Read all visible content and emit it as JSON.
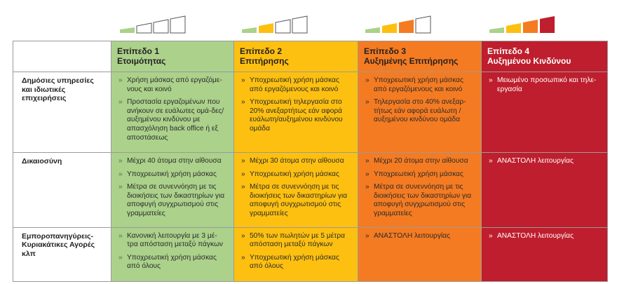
{
  "levels": [
    {
      "title1": "Επίπεδο 1",
      "title2": "Ετοιμότητας",
      "color": "#abd18b",
      "active_bars": 1
    },
    {
      "title1": "Επίπεδο 2",
      "title2": "Επιτήρησης",
      "color": "#fdc010",
      "active_bars": 2
    },
    {
      "title1": "Επίπεδο 3",
      "title2": "Αυξημένης Επιτήρησης",
      "color": "#f47b22",
      "active_bars": 3
    },
    {
      "title1": "Επίπεδο 4",
      "title2": "Αυξημένου Κινδύνου",
      "color": "#be1e2d",
      "active_bars": 4
    }
  ],
  "rows": [
    {
      "label": "Δημόσιες υπηρεσίες και ιδιωτικές επιχειρήσεις",
      "cells": [
        [
          "Χρήση μάσκας από εργαζόμε-νους και κοινό",
          "Προστασία εργαζομένων που ανήκουν σε ευάλωτες ομά-δες/αυξημένου κινδύνου με απασχόληση back office ή εξ αποστάσεως"
        ],
        [
          "Υποχρεωτική χρήση μάσκας από εργαζόμενους και κοινό",
          "Υποχρεωτική τηλεργασία στο 20% ανεξαρτήτως εάν αφορά ευάλωτη/αυξημένου κινδύνου ομάδα"
        ],
        [
          "Υποχρεωτική χρήση μάσκας από εργαζόμενους και κοινό",
          "Τηλεργασία στο 40% ανεξαρ-τήτως εάν αφορά ευάλωτη / αυξημένου κινδύνου ομάδα"
        ],
        [
          "Μειωμένο προσωπικό και τηλε-εργασία"
        ]
      ]
    },
    {
      "label": "Δικαιοσύνη",
      "cells": [
        [
          "Μέχρι 40 άτομα στην αίθουσα",
          "Υποχρεωτική χρήση μάσκας",
          "Μέτρα σε συνεννόηση με τις διοικήσεις των δικαστηρίων για αποφυγή συγχρωτισμού στις γραμματείες"
        ],
        [
          "Μέχρι 30 άτομα στην αίθουσα",
          "Υποχρεωτική χρήση μάσκας",
          "Μέτρα σε συνεννόηση με τις διοικήσεις των δικαστηρίων για αποφυγή συγχρωτισμού στις γραμματείες"
        ],
        [
          "Μέχρι 20 άτομα στην αίθουσα",
          "Υποχρεωτική χρήση μάσκας",
          "Μέτρα σε συνεννόηση με τις διοικήσεις των δικαστηρίων για αποφυγή συγχρωτισμού στις γραμματείες"
        ],
        [
          "ΑΝΑΣΤΟΛΗ λειτουργίας"
        ]
      ]
    },
    {
      "label": "Εμποροπανηγύρεις-Κυριακάτικες Αγορές κλπ",
      "cells": [
        [
          "Κανονική λειτουργία με 3 μέ-τρα απόσταση  μεταξύ πάγκων",
          "Υποχρεωτική χρήση μάσκας από όλους"
        ],
        [
          "50% των πωλητών με 5 μέτρα απόσταση  μεταξύ πάγκων",
          "Υποχρεωτική χρήση μάσκας από όλους"
        ],
        [
          "ΑΝΑΣΤΟΛΗ λειτουργίας"
        ],
        [
          "ΑΝΑΣΤΟΛΗ λειτουργίας"
        ]
      ]
    }
  ]
}
